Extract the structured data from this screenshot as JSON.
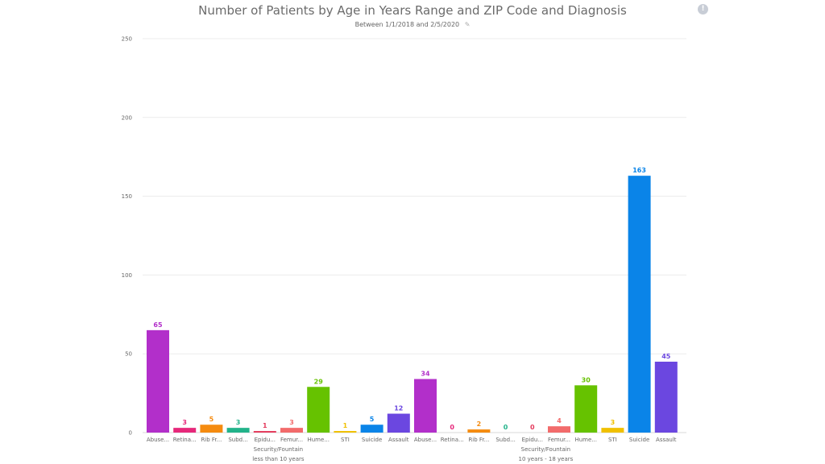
{
  "header": {
    "title": "Number of Patients by Age in Years Range and ZIP Code and Diagnosis",
    "subtitle": "Between 1/1/2018 and 2/5/2020",
    "edit_icon": "pencil-icon",
    "info_icon": "info-icon",
    "info_glyph": "!"
  },
  "chart_data": {
    "type": "bar",
    "title": "Number of Patients by Age in Years Range and ZIP Code and Diagnosis",
    "subtitle": "Between 1/1/2018 and 2/5/2020",
    "xlabel": "",
    "ylabel": "",
    "ylim": [
      0,
      250
    ],
    "yticks": [
      0,
      50,
      100,
      150,
      200,
      250
    ],
    "grid": true,
    "legend": "none",
    "groups": [
      {
        "label_line1": "Security/Fountain",
        "label_line2": "less than 10 years",
        "bars": [
          {
            "category": "Abuse...",
            "value": 65,
            "color": "#b22fca"
          },
          {
            "category": "Retina...",
            "value": 3,
            "color": "#e6287a"
          },
          {
            "category": "Rib Fr...",
            "value": 5,
            "color": "#f58b0f"
          },
          {
            "category": "Subd...",
            "value": 3,
            "color": "#22b38a"
          },
          {
            "category": "Epidu...",
            "value": 1,
            "color": "#e43a5c"
          },
          {
            "category": "Femur...",
            "value": 3,
            "color": "#f26b6b"
          },
          {
            "category": "Hume...",
            "value": 29,
            "color": "#66c200"
          },
          {
            "category": "STI",
            "value": 1,
            "color": "#f0c000"
          },
          {
            "category": "Suicide",
            "value": 5,
            "color": "#0a84e8"
          },
          {
            "category": "Assault",
            "value": 12,
            "color": "#6b47e0"
          }
        ]
      },
      {
        "label_line1": "Security/Fountain",
        "label_line2": "10 years - 18 years",
        "bars": [
          {
            "category": "Abuse...",
            "value": 34,
            "color": "#b22fca"
          },
          {
            "category": "Retina...",
            "value": 0,
            "color": "#e6287a"
          },
          {
            "category": "Rib Fr...",
            "value": 2,
            "color": "#f58b0f"
          },
          {
            "category": "Subd...",
            "value": 0,
            "color": "#22b38a"
          },
          {
            "category": "Epidu...",
            "value": 0,
            "color": "#e43a5c"
          },
          {
            "category": "Femur...",
            "value": 4,
            "color": "#f26b6b"
          },
          {
            "category": "Hume...",
            "value": 30,
            "color": "#66c200"
          },
          {
            "category": "STI",
            "value": 3,
            "color": "#f0c000"
          },
          {
            "category": "Suicide",
            "value": 163,
            "color": "#0a84e8"
          },
          {
            "category": "Assault",
            "value": 45,
            "color": "#6b47e0"
          }
        ]
      }
    ]
  }
}
